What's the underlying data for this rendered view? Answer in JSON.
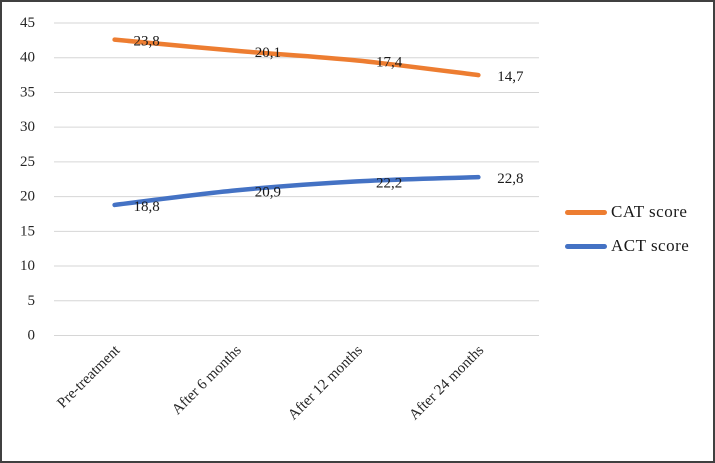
{
  "figure": {
    "background": "#FFFFFF",
    "border_color": "#404040"
  },
  "chart_data": {
    "type": "line",
    "stacked": true,
    "smooth": true,
    "grid": true,
    "legend_position": "right",
    "categories": [
      "Pre-treatment",
      "After 6 months",
      "After 12 months",
      "After 24 months"
    ],
    "series": [
      {
        "name": "ACT score",
        "color": "#4472C4",
        "values": [
          18.8,
          20.9,
          22.2,
          22.8
        ],
        "point_labels": [
          "18,8",
          "20,9",
          "22,2",
          "22,8"
        ]
      },
      {
        "name": "CAT score",
        "color": "#ED7D31",
        "values": [
          23.8,
          20.1,
          17.4,
          14.7
        ],
        "point_labels": [
          "23,8",
          "20,1",
          "17,4",
          "14,7"
        ]
      }
    ],
    "legend": [
      {
        "label": "CAT score",
        "series": "CAT score"
      },
      {
        "label": "ACT score",
        "series": "ACT score"
      }
    ],
    "y_axis": {
      "min": 0,
      "max": 45,
      "step": 5,
      "tick_labels": [
        "0",
        "5",
        "10",
        "15",
        "20",
        "25",
        "30",
        "35",
        "40",
        "45"
      ]
    },
    "colors": {
      "gridline": "#D6D6D6",
      "tick_text": "#262626",
      "axis_label_text": "#262626",
      "data_label_text": "#1A1A1A"
    }
  }
}
